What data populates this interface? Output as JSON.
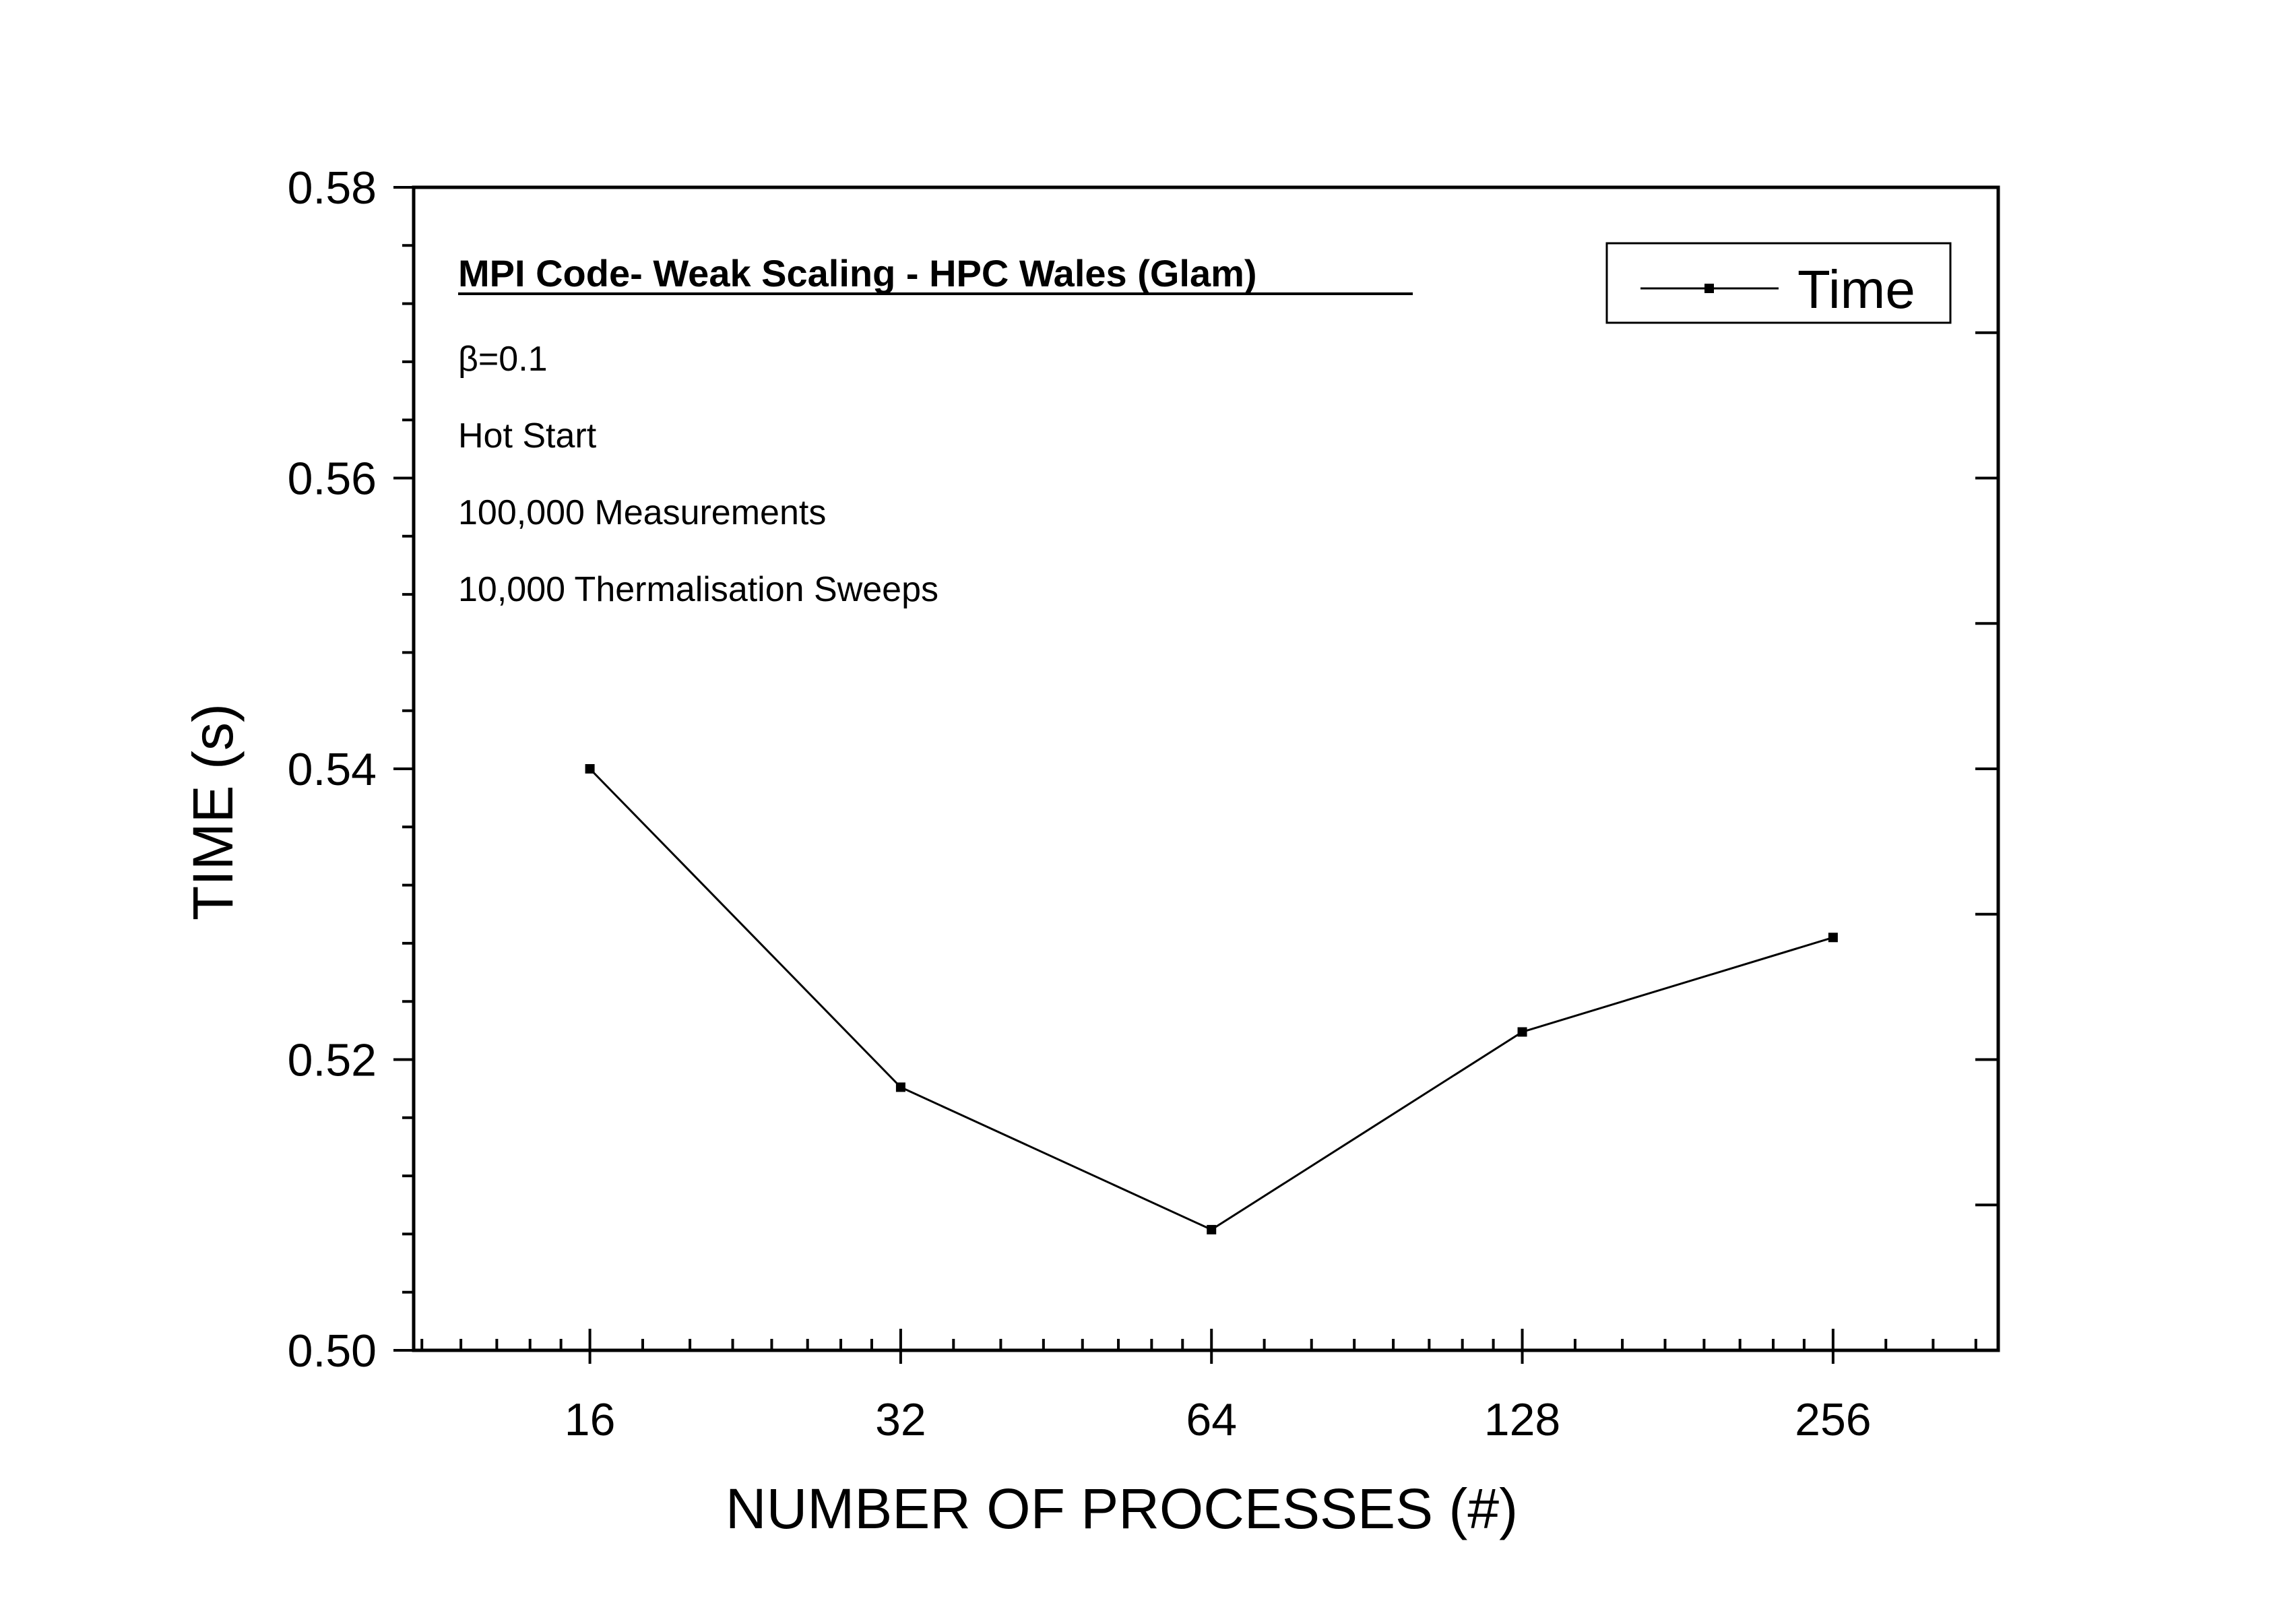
{
  "chart_data": {
    "type": "line",
    "title": "",
    "xlabel": "NUMBER OF PROCESSES (#)",
    "ylabel": "TIME (s)",
    "x_scale": "log2",
    "xlim": [
      10.8,
      370
    ],
    "ylim": [
      0.5,
      0.58
    ],
    "x_ticks": [
      16,
      32,
      64,
      128,
      256
    ],
    "x_tick_labels": [
      "16",
      "32",
      "64",
      "128",
      "256"
    ],
    "y_ticks": [
      0.5,
      0.52,
      0.54,
      0.56,
      0.58
    ],
    "y_tick_labels": [
      "0.50",
      "0.52",
      "0.54",
      "0.56",
      "0.58"
    ],
    "grid": false,
    "legend_position": "top-right",
    "series": [
      {
        "name": "Time",
        "color": "#000000",
        "marker": "square",
        "x": [
          16,
          32,
          64,
          128,
          256
        ],
        "y": [
          0.54,
          0.5181,
          0.5083,
          0.5219,
          0.5284
        ]
      }
    ],
    "annotations": {
      "heading": "MPI Code- Weak Scaling - HPC Wales (Glam)",
      "lines": [
        "β=0.1",
        "Hot Start",
        "100,000 Measurements",
        "10,000 Thermalisation Sweeps"
      ]
    }
  }
}
